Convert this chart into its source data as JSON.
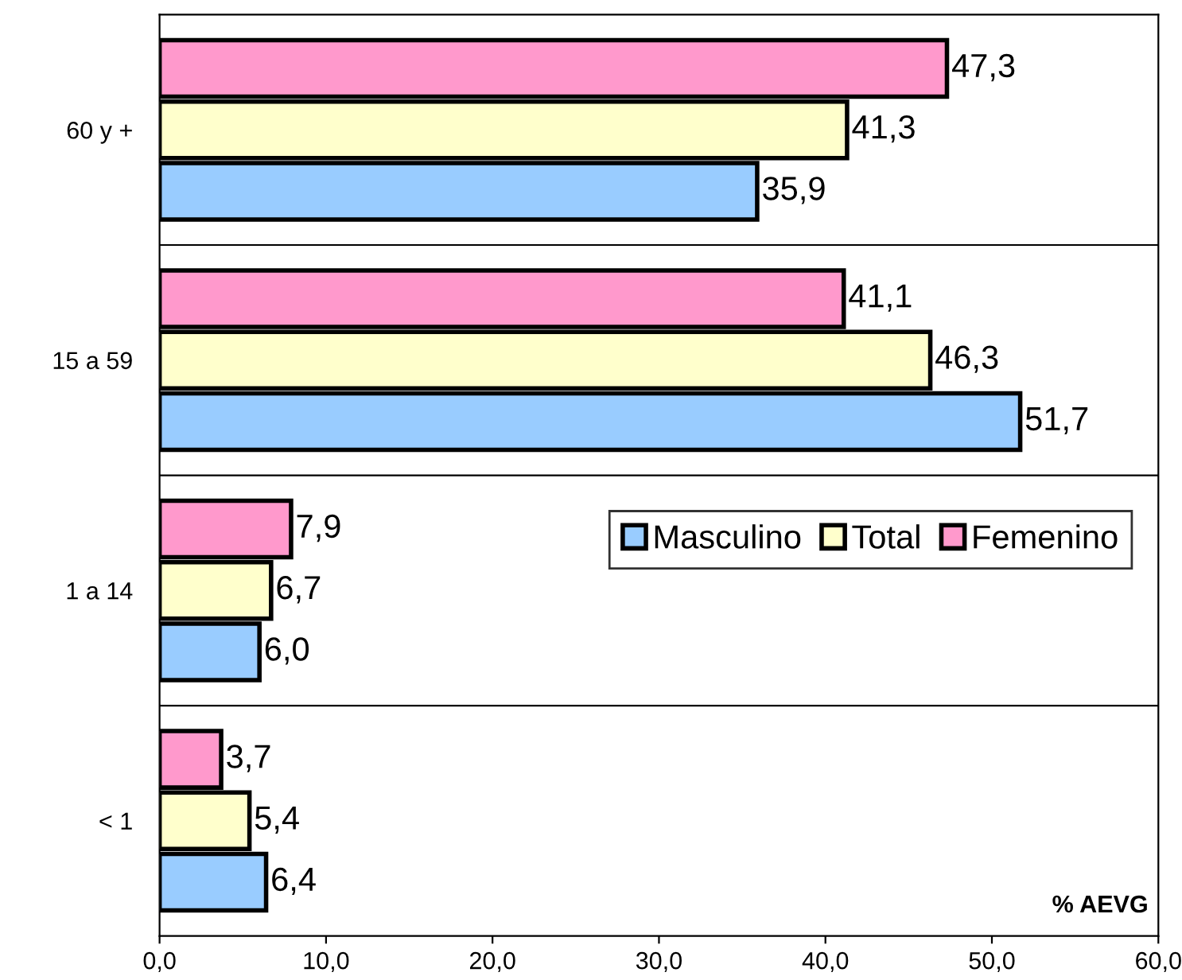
{
  "chart_data": {
    "type": "bar",
    "orientation": "horizontal",
    "categories": [
      "60 y +",
      "15 a 59",
      "1 a 14",
      "< 1"
    ],
    "series": [
      {
        "name": "Masculino",
        "color": "#99ccff",
        "values": [
          35.9,
          51.7,
          6.0,
          6.4
        ],
        "value_labels": [
          "35,9",
          "51,7",
          "6,0",
          "6,4"
        ]
      },
      {
        "name": "Total",
        "color": "#ffffcc",
        "values": [
          41.3,
          46.3,
          6.7,
          5.4
        ],
        "value_labels": [
          "41,3",
          "46,3",
          "6,7",
          "5,4"
        ]
      },
      {
        "name": "Femenino",
        "color": "#ff99cc",
        "values": [
          47.3,
          41.1,
          7.9,
          3.7
        ],
        "value_labels": [
          "47,3",
          "41,1",
          "7,9",
          "3,7"
        ]
      }
    ],
    "xlim": [
      0,
      60
    ],
    "xticks": [
      {
        "value": 0,
        "label": "0,0"
      },
      {
        "value": 10,
        "label": "10,0"
      },
      {
        "value": 20,
        "label": "20,0"
      },
      {
        "value": 30,
        "label": "30,0"
      },
      {
        "value": 40,
        "label": "40,0"
      },
      {
        "value": 50,
        "label": "50,0"
      },
      {
        "value": 60,
        "label": "60,0"
      }
    ],
    "grid": "y",
    "legend": "right",
    "annotations": [
      "% AEVG"
    ]
  }
}
